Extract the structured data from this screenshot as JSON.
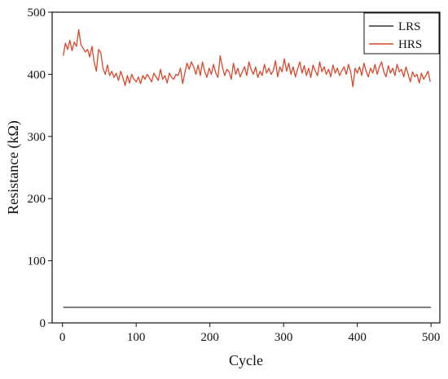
{
  "chart_data": {
    "type": "line",
    "xlabel": "Cycle",
    "ylabel": "Resistance (kΩ)",
    "xlim": [
      -14,
      512
    ],
    "ylim": [
      0,
      500
    ],
    "xticks": [
      0,
      100,
      200,
      300,
      400,
      500
    ],
    "yticks": [
      0,
      100,
      200,
      300,
      400,
      500
    ],
    "legend_position": "top-right",
    "grid": false,
    "series": [
      {
        "name": "LRS",
        "color": "#333333",
        "x": [
          1,
          50,
          100,
          150,
          200,
          250,
          300,
          350,
          400,
          450,
          500
        ],
        "values": [
          25,
          25,
          25,
          25,
          25,
          25,
          25,
          25,
          25,
          25,
          25
        ]
      },
      {
        "name": "HRS",
        "color": "#d9472b",
        "x": [
          1,
          4,
          7,
          10,
          13,
          16,
          19,
          22,
          25,
          28,
          31,
          34,
          37,
          40,
          43,
          46,
          49,
          52,
          55,
          58,
          61,
          64,
          67,
          70,
          73,
          76,
          79,
          82,
          85,
          88,
          91,
          94,
          97,
          100,
          103,
          106,
          109,
          112,
          115,
          118,
          121,
          124,
          127,
          130,
          133,
          136,
          139,
          142,
          145,
          148,
          151,
          154,
          157,
          160,
          163,
          166,
          169,
          172,
          175,
          178,
          181,
          184,
          187,
          190,
          193,
          196,
          199,
          202,
          205,
          208,
          211,
          214,
          217,
          220,
          223,
          226,
          229,
          232,
          235,
          238,
          241,
          244,
          247,
          250,
          253,
          256,
          259,
          262,
          265,
          268,
          271,
          274,
          277,
          280,
          283,
          286,
          289,
          292,
          295,
          298,
          301,
          304,
          307,
          310,
          313,
          316,
          319,
          322,
          325,
          328,
          331,
          334,
          337,
          340,
          343,
          346,
          349,
          352,
          355,
          358,
          361,
          364,
          367,
          370,
          373,
          376,
          379,
          382,
          385,
          388,
          391,
          394,
          397,
          400,
          403,
          406,
          409,
          412,
          415,
          418,
          421,
          424,
          427,
          430,
          433,
          436,
          439,
          442,
          445,
          448,
          451,
          454,
          457,
          460,
          463,
          466,
          469,
          472,
          475,
          478,
          481,
          484,
          487,
          490,
          493,
          496,
          499
        ],
        "values": [
          430,
          450,
          440,
          455,
          438,
          452,
          445,
          472,
          448,
          442,
          436,
          440,
          428,
          445,
          420,
          405,
          440,
          435,
          410,
          400,
          415,
          398,
          405,
          395,
          402,
          390,
          405,
          395,
          382,
          398,
          386,
          400,
          392,
          388,
          396,
          385,
          398,
          392,
          400,
          394,
          388,
          402,
          396,
          390,
          408,
          392,
          398,
          386,
          402,
          395,
          392,
          400,
          398,
          410,
          385,
          402,
          418,
          408,
          420,
          412,
          400,
          415,
          398,
          420,
          405,
          395,
          410,
          400,
          416,
          402,
          395,
          430,
          412,
          398,
          408,
          404,
          392,
          418,
          400,
          410,
          396,
          404,
          412,
          398,
          420,
          408,
          400,
          412,
          395,
          405,
          398,
          416,
          402,
          410,
          400,
          406,
          422,
          396,
          412,
          404,
          425,
          405,
          418,
          400,
          412,
          396,
          408,
          420,
          402,
          414,
          398,
          410,
          395,
          415,
          405,
          398,
          420,
          404,
          412,
          400,
          408,
          396,
          415,
          402,
          410,
          398,
          406,
          412,
          400,
          416,
          404,
          380,
          410,
          402,
          412,
          398,
          418,
          405,
          396,
          410,
          402,
          416,
          400,
          412,
          420,
          404,
          396,
          414,
          402,
          410,
          398,
          416,
          404,
          408,
          396,
          412,
          400,
          388,
          404,
          396,
          400,
          386,
          402,
          392,
          398,
          405,
          388
        ],
        "line_type": "jagged"
      }
    ]
  }
}
